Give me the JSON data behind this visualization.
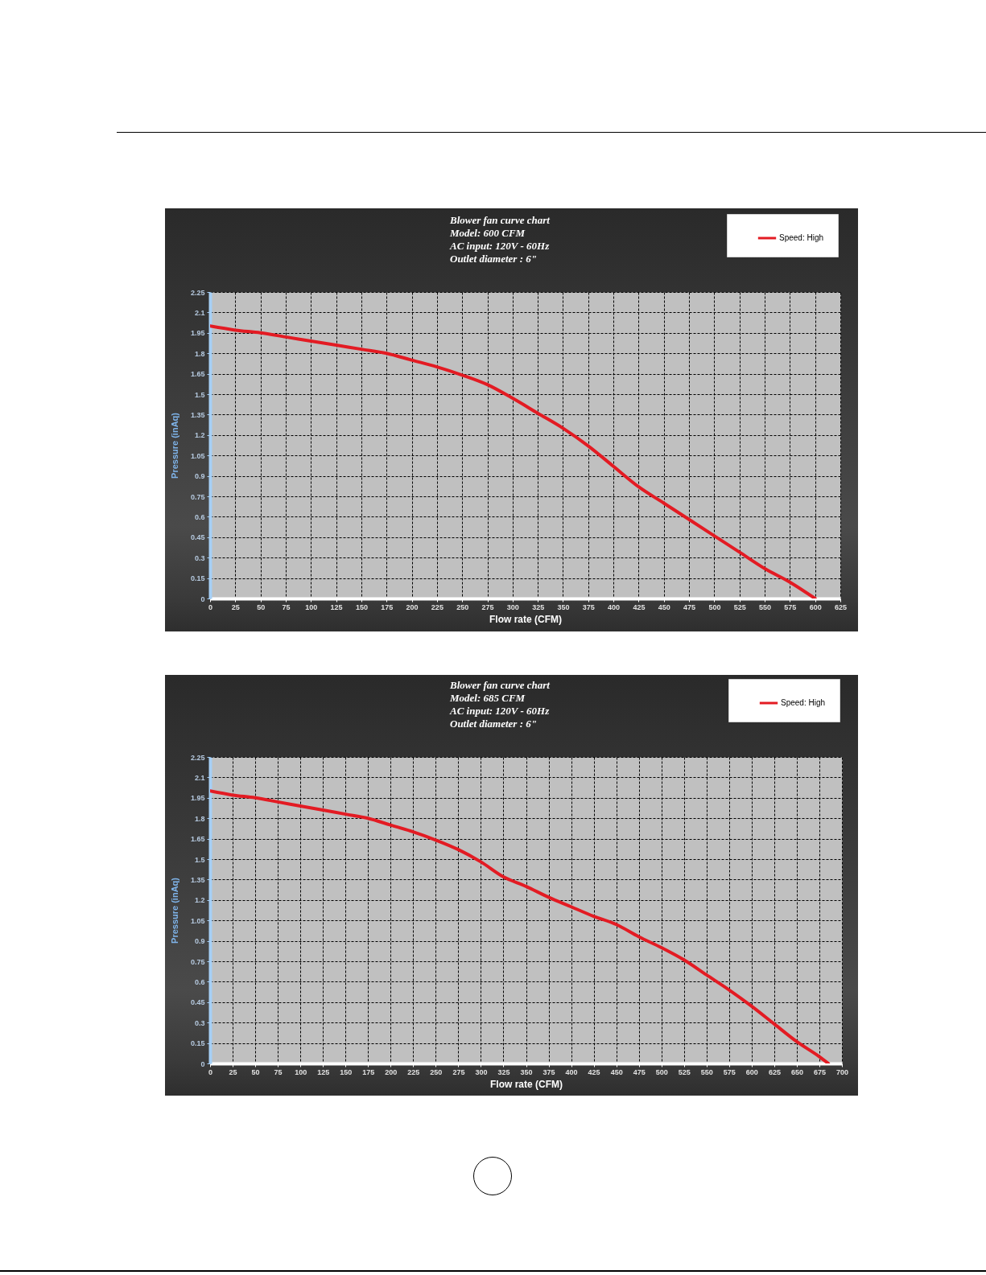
{
  "chart_data": [
    {
      "type": "line",
      "title": "Blower fan curve chart",
      "subtitle": "Model: 600 CFM\nAC input: 120V - 60Hz\nOutlet diameter : 6\"",
      "xlabel": "Flow rate (CFM)",
      "ylabel": "Pressure (inAq)",
      "x": [
        0,
        25,
        50,
        75,
        100,
        125,
        150,
        175,
        200,
        225,
        250,
        275,
        300,
        325,
        350,
        375,
        400,
        425,
        450,
        475,
        500,
        525,
        550,
        575,
        600
      ],
      "series": [
        {
          "name": "Speed: High",
          "color": "#e31b23",
          "values": [
            2.0,
            1.97,
            1.95,
            1.92,
            1.89,
            1.86,
            1.83,
            1.8,
            1.75,
            1.7,
            1.64,
            1.57,
            1.47,
            1.36,
            1.25,
            1.12,
            0.97,
            0.82,
            0.7,
            0.58,
            0.46,
            0.34,
            0.22,
            0.12,
            0
          ]
        }
      ],
      "xlim": [
        0,
        625
      ],
      "xticks": [
        0,
        25,
        50,
        75,
        100,
        125,
        150,
        175,
        200,
        225,
        250,
        275,
        300,
        325,
        350,
        375,
        400,
        425,
        450,
        475,
        500,
        525,
        550,
        575,
        600,
        625
      ],
      "ylim": [
        0,
        2.25
      ],
      "yticks": [
        0,
        0.15,
        0.3,
        0.45,
        0.6,
        0.75,
        0.9,
        1.05,
        1.2,
        1.35,
        1.5,
        1.65,
        1.8,
        1.95,
        2.1,
        2.25
      ],
      "grid": true,
      "legend": "top right",
      "line_style": "solid"
    },
    {
      "type": "line",
      "title": "Blower fan curve chart",
      "subtitle": "Model: 685 CFM\nAC input: 120V - 60Hz\nOutlet diameter : 6\"",
      "xlabel": "Flow rate (CFM)",
      "ylabel": "Pressure (inAq)",
      "x": [
        0,
        25,
        50,
        75,
        100,
        125,
        150,
        175,
        200,
        225,
        250,
        275,
        300,
        325,
        350,
        375,
        400,
        425,
        450,
        475,
        500,
        525,
        550,
        575,
        600,
        625,
        650,
        675,
        685
      ],
      "series": [
        {
          "name": "Speed: High",
          "color": "#e31b23",
          "values": [
            2.0,
            1.97,
            1.95,
            1.92,
            1.89,
            1.86,
            1.83,
            1.8,
            1.75,
            1.7,
            1.64,
            1.57,
            1.48,
            1.37,
            1.3,
            1.22,
            1.15,
            1.08,
            1.02,
            0.93,
            0.85,
            0.76,
            0.65,
            0.54,
            0.42,
            0.29,
            0.16,
            0.05,
            0
          ]
        }
      ],
      "xlim": [
        0,
        700
      ],
      "xticks": [
        0,
        25,
        50,
        75,
        100,
        125,
        150,
        175,
        200,
        225,
        250,
        275,
        300,
        325,
        350,
        375,
        400,
        425,
        450,
        475,
        500,
        525,
        550,
        575,
        600,
        625,
        650,
        675,
        700
      ],
      "ylim": [
        0,
        2.25
      ],
      "yticks": [
        0,
        0.15,
        0.3,
        0.45,
        0.6,
        0.75,
        0.9,
        1.05,
        1.2,
        1.35,
        1.5,
        1.65,
        1.8,
        1.95,
        2.1,
        2.25
      ],
      "grid": true,
      "legend": "top right",
      "line_style": "solid"
    }
  ]
}
